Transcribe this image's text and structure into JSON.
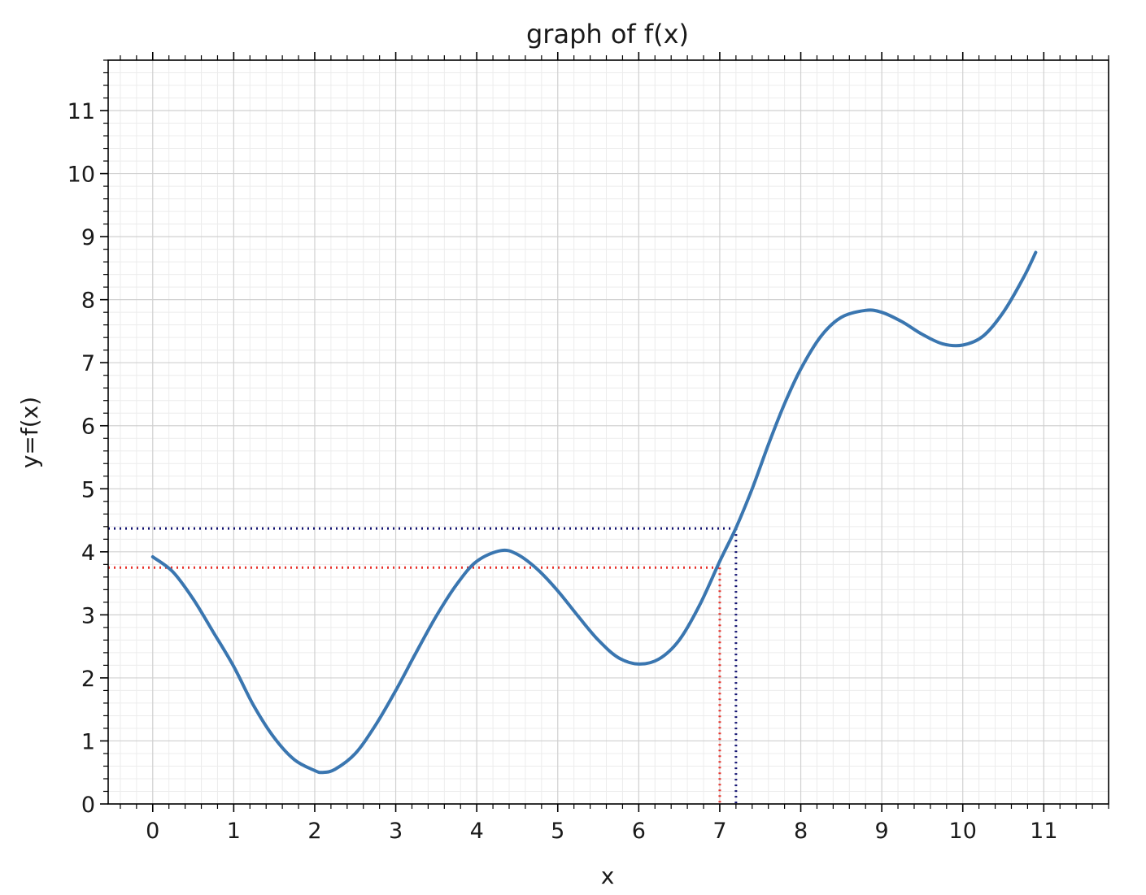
{
  "chart_data": {
    "type": "line",
    "title": "graph of f(x)",
    "xlabel": "x",
    "ylabel": "y=f(x)",
    "xlim": [
      -0.55,
      11.8
    ],
    "ylim": [
      0,
      11.8
    ],
    "x_ticks": [
      0,
      1,
      2,
      3,
      4,
      5,
      6,
      7,
      8,
      9,
      10,
      11
    ],
    "y_ticks": [
      0,
      1,
      2,
      3,
      4,
      5,
      6,
      7,
      8,
      9,
      10,
      11
    ],
    "minor_tick_step": 0.2,
    "grid": true,
    "series": [
      {
        "color": "#3a76b0",
        "points": [
          [
            0.0,
            3.92
          ],
          [
            0.25,
            3.68
          ],
          [
            0.5,
            3.25
          ],
          [
            0.75,
            2.72
          ],
          [
            1.0,
            2.18
          ],
          [
            1.25,
            1.55
          ],
          [
            1.5,
            1.05
          ],
          [
            1.75,
            0.7
          ],
          [
            2.0,
            0.53
          ],
          [
            2.1,
            0.5
          ],
          [
            2.25,
            0.55
          ],
          [
            2.5,
            0.8
          ],
          [
            2.75,
            1.25
          ],
          [
            3.0,
            1.8
          ],
          [
            3.25,
            2.4
          ],
          [
            3.5,
            2.98
          ],
          [
            3.75,
            3.48
          ],
          [
            4.0,
            3.85
          ],
          [
            4.3,
            4.02
          ],
          [
            4.5,
            3.96
          ],
          [
            4.75,
            3.72
          ],
          [
            5.0,
            3.38
          ],
          [
            5.25,
            2.98
          ],
          [
            5.5,
            2.6
          ],
          [
            5.75,
            2.32
          ],
          [
            6.0,
            2.22
          ],
          [
            6.25,
            2.3
          ],
          [
            6.5,
            2.6
          ],
          [
            6.75,
            3.15
          ],
          [
            7.0,
            3.85
          ],
          [
            7.2,
            4.38
          ],
          [
            7.4,
            5.0
          ],
          [
            7.6,
            5.7
          ],
          [
            7.8,
            6.35
          ],
          [
            8.0,
            6.9
          ],
          [
            8.25,
            7.42
          ],
          [
            8.5,
            7.72
          ],
          [
            8.8,
            7.83
          ],
          [
            9.0,
            7.8
          ],
          [
            9.25,
            7.65
          ],
          [
            9.5,
            7.45
          ],
          [
            9.75,
            7.3
          ],
          [
            10.0,
            7.28
          ],
          [
            10.25,
            7.42
          ],
          [
            10.5,
            7.8
          ],
          [
            10.75,
            8.35
          ],
          [
            10.9,
            8.75
          ]
        ]
      }
    ],
    "annotations": [
      {
        "x": 7.0,
        "y": 3.75,
        "color": "#e8312a",
        "style": "dotted"
      },
      {
        "x": 7.2,
        "y": 4.37,
        "color": "#101070",
        "style": "dotted"
      }
    ]
  }
}
